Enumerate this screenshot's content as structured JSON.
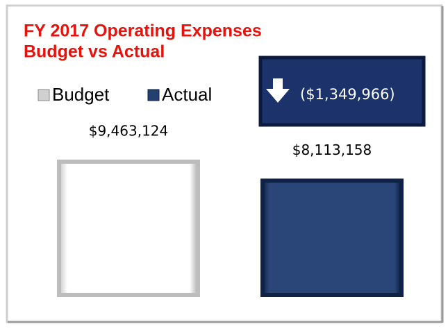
{
  "chart_data": {
    "type": "bar",
    "title": [
      "FY 2017 Operating Expenses",
      "Budget vs Actual"
    ],
    "annotation": "($1,349,966)",
    "series": [
      {
        "name": "Budget",
        "color": "#ffffff",
        "values": [
          9463124
        ],
        "value_labels": [
          "$9,463,124"
        ]
      },
      {
        "name": "Actual",
        "color": "#24406f",
        "values": [
          8113158
        ],
        "value_labels": [
          "$8,113,158"
        ]
      }
    ]
  }
}
